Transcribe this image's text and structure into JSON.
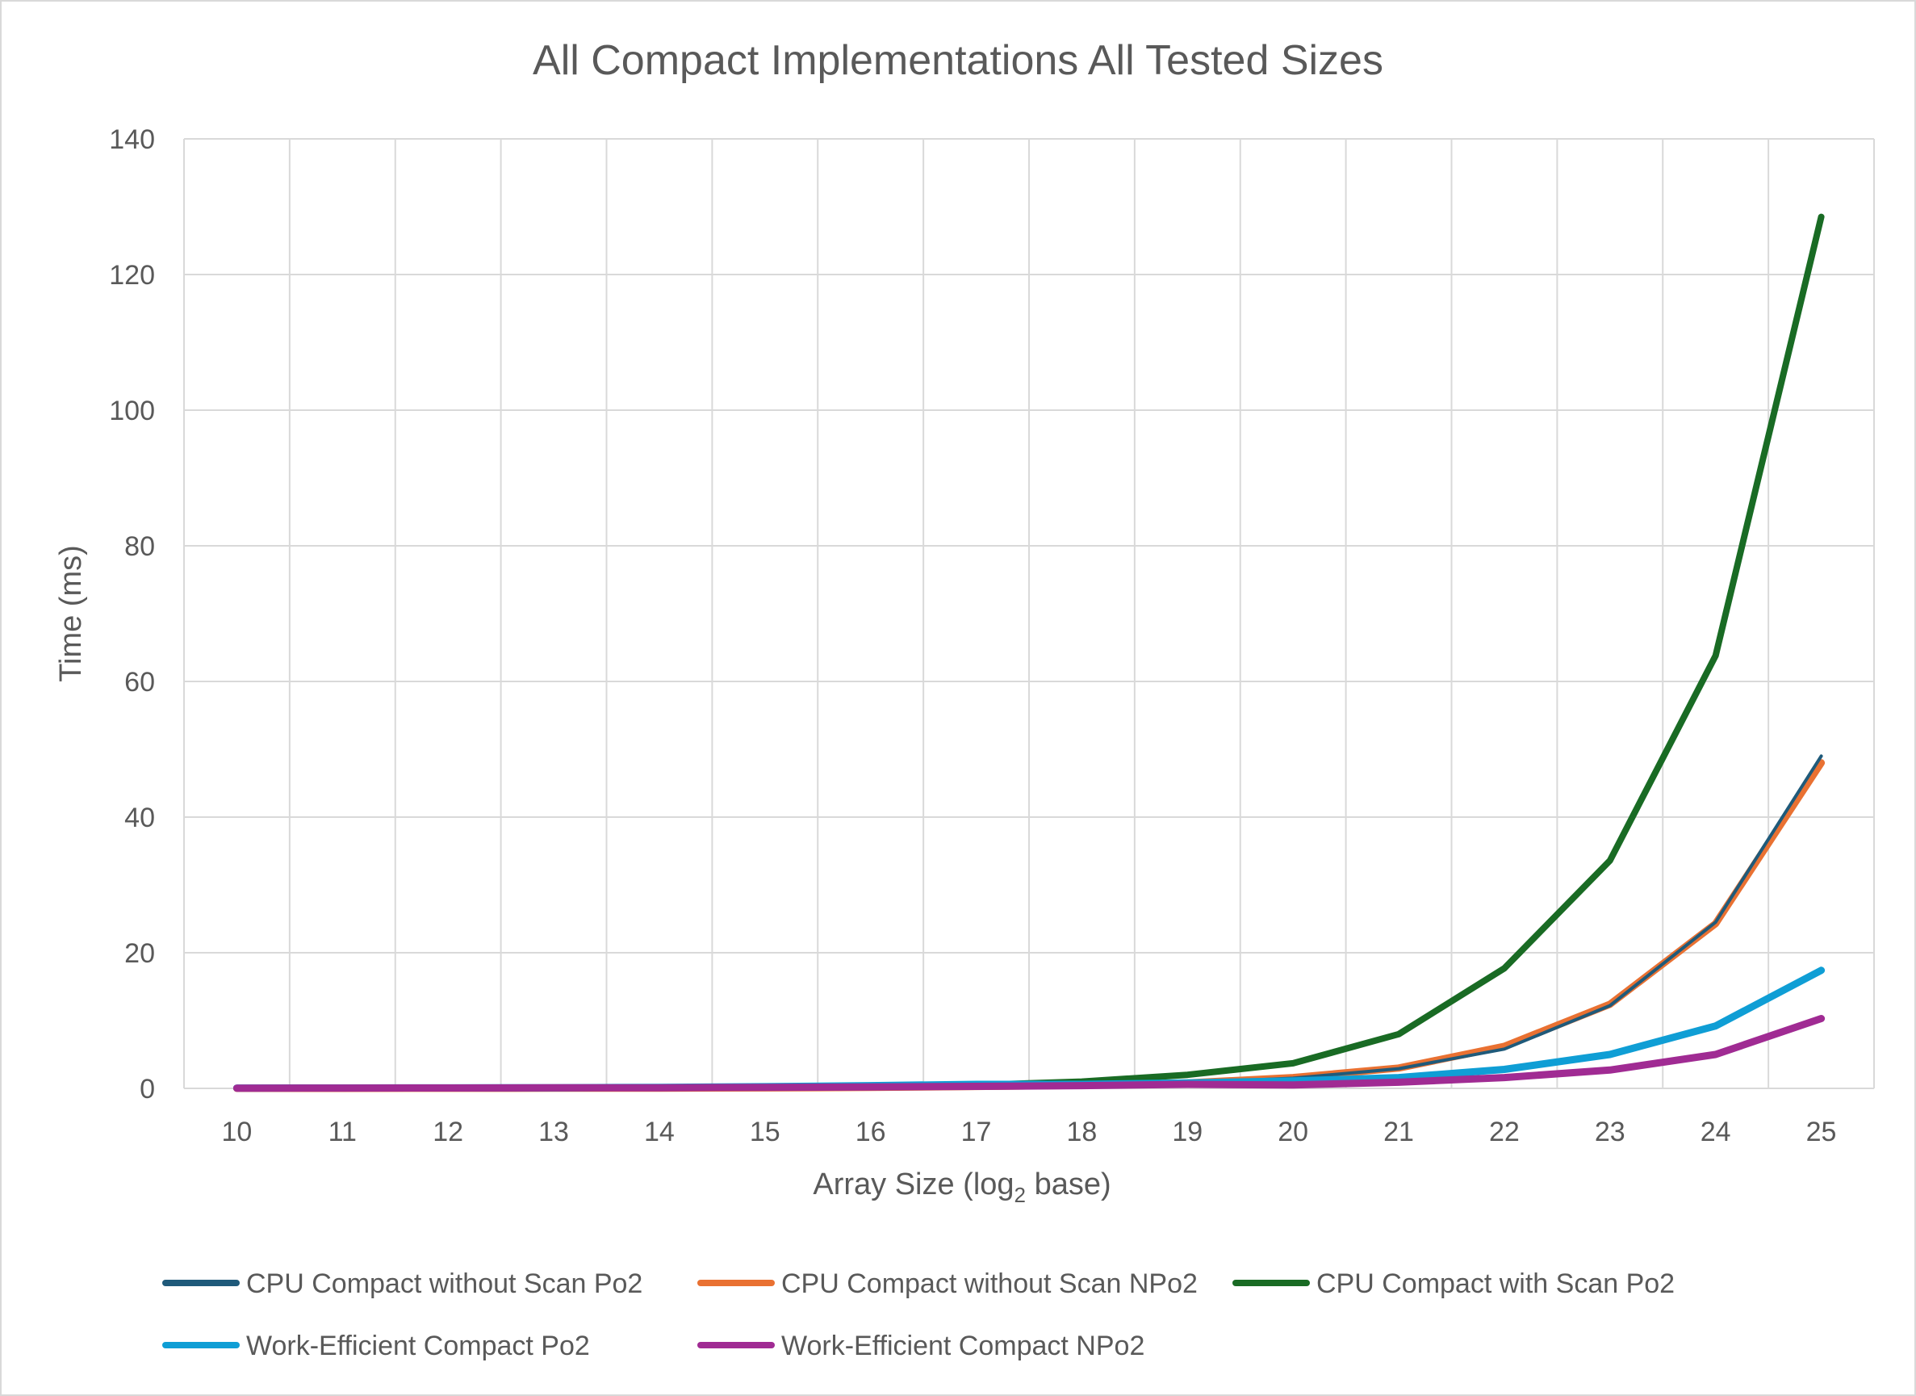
{
  "chart_data": {
    "type": "line",
    "title": "All Compact Implementations All Tested Sizes",
    "xlabel": "Array Size (log",
    "xlabel_sub": "2",
    "xlabel_suffix": " base)",
    "ylabel": "Time (ms)",
    "x": [
      10,
      11,
      12,
      13,
      14,
      15,
      16,
      17,
      18,
      19,
      20,
      21,
      22,
      23,
      24,
      25
    ],
    "ylim": [
      0,
      140
    ],
    "yticks": [
      0,
      20,
      40,
      60,
      80,
      100,
      120,
      140
    ],
    "grid": true,
    "legend_position": "bottom",
    "series": [
      {
        "name": "CPU Compact without Scan Po2",
        "color": "#1f5a7a",
        "values": [
          0.002,
          0.004,
          0.009,
          0.018,
          0.036,
          0.07,
          0.14,
          0.28,
          0.45,
          0.8,
          1.5,
          2.9,
          5.8,
          12.2,
          24.5,
          49.0
        ]
      },
      {
        "name": "CPU Compact without Scan NPo2",
        "color": "#e97132",
        "values": [
          0.002,
          0.004,
          0.009,
          0.018,
          0.036,
          0.07,
          0.14,
          0.28,
          0.45,
          0.8,
          1.6,
          3.0,
          6.2,
          12.4,
          24.3,
          48.0
        ]
      },
      {
        "name": "CPU Compact with Scan Po2",
        "color": "#196b24",
        "values": [
          0.005,
          0.01,
          0.02,
          0.04,
          0.08,
          0.16,
          0.3,
          0.5,
          1.0,
          2.0,
          3.7,
          8.0,
          17.7,
          33.6,
          63.8,
          128.5
        ]
      },
      {
        "name": "Work-Efficient Compact Po2",
        "color": "#0f9ed5",
        "values": [
          0.05,
          0.06,
          0.07,
          0.1,
          0.15,
          0.25,
          0.4,
          0.6,
          0.6,
          0.8,
          1.1,
          1.6,
          2.8,
          5.0,
          9.2,
          17.4
        ]
      },
      {
        "name": "Work-Efficient Compact NPo2",
        "color": "#a02b93",
        "values": [
          0.04,
          0.05,
          0.06,
          0.08,
          0.1,
          0.15,
          0.2,
          0.3,
          0.4,
          0.6,
          0.5,
          0.9,
          1.6,
          2.7,
          5.0,
          10.3
        ]
      }
    ]
  }
}
